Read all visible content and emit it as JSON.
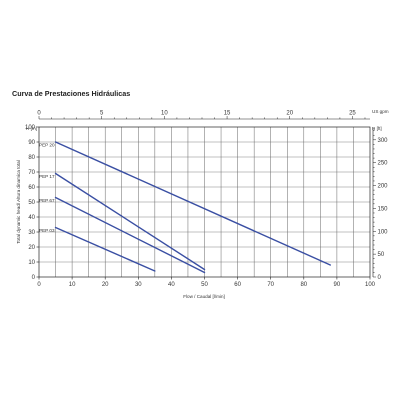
{
  "chart_data": {
    "type": "line",
    "title": "Curva de Prestaciones Hidráulicas",
    "xlabel": "Flow / Caudal [l/min]",
    "ylabel": "Total dynamic head/ Altura dinamica total",
    "xlim": [
      0,
      100
    ],
    "ylim": [
      0,
      100
    ],
    "x_ticks": [
      "0",
      "10",
      "20",
      "30",
      "40",
      "50",
      "60",
      "70",
      "80",
      "90",
      "100"
    ],
    "y_ticks": [
      "0",
      "10",
      "20",
      "30",
      "40",
      "50",
      "60",
      "70",
      "80",
      "90",
      "100"
    ],
    "top_axis": {
      "unit": "US gpm",
      "ticks": [
        "0",
        "5",
        "10",
        "15",
        "20",
        "25"
      ],
      "max": 26.4
    },
    "left_unit": "H [m]",
    "right_axis": {
      "unit": "H [ft]",
      "ticks": [
        "0",
        "50",
        "100",
        "150",
        "200",
        "250",
        "300"
      ],
      "max": 328
    },
    "grid": true,
    "legend": "inline labels",
    "line_color": "#3a4fa3",
    "series": [
      {
        "name": "PEP 20",
        "x": [
          5,
          88
        ],
        "y": [
          90,
          8
        ]
      },
      {
        "name": "PEP 17",
        "x": [
          5,
          50
        ],
        "y": [
          69,
          5
        ]
      },
      {
        "name": "PEP 67",
        "x": [
          5,
          50
        ],
        "y": [
          53,
          3
        ]
      },
      {
        "name": "PEP 03",
        "x": [
          5,
          35
        ],
        "y": [
          33,
          4
        ]
      }
    ]
  }
}
